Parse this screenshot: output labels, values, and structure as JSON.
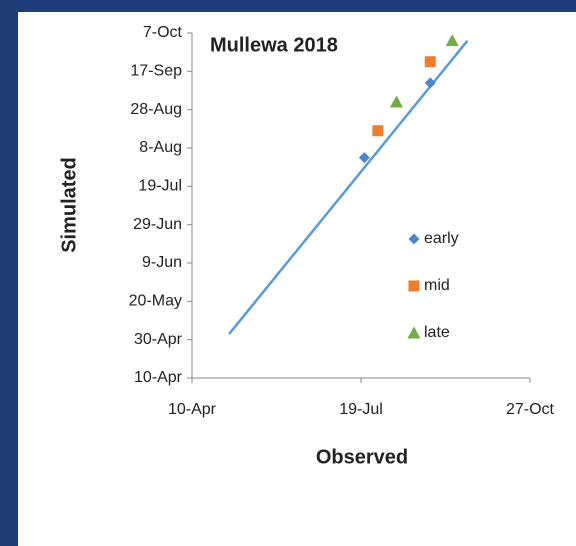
{
  "chart_data": {
    "type": "scatter",
    "title": "Mullewa 2018",
    "x_label": "Observed",
    "y_label": "Simulated",
    "xlim": [
      100,
      300
    ],
    "ylim": [
      100,
      280
    ],
    "xticks": [
      {
        "value": 100,
        "label": "10-Apr"
      },
      {
        "value": 200,
        "label": "19-Jul"
      },
      {
        "value": 300,
        "label": "27-Oct"
      }
    ],
    "yticks": [
      {
        "value": 100,
        "label": "10-Apr"
      },
      {
        "value": 120,
        "label": "30-Apr"
      },
      {
        "value": 140,
        "label": "20-May"
      },
      {
        "value": 160,
        "label": "9-Jun"
      },
      {
        "value": 180,
        "label": "29-Jun"
      },
      {
        "value": 200,
        "label": "19-Jul"
      },
      {
        "value": 220,
        "label": "8-Aug"
      },
      {
        "value": 240,
        "label": "28-Aug"
      },
      {
        "value": 260,
        "label": "17-Sep"
      },
      {
        "value": 280,
        "label": "7-Oct"
      }
    ],
    "series": [
      {
        "name": "early",
        "color": "#4a86c8",
        "marker": "diamond",
        "x": [
          202,
          241
        ],
        "values": [
          215,
          254
        ]
      },
      {
        "name": "mid",
        "color": "#ed7d31",
        "marker": "square",
        "x": [
          210,
          241
        ],
        "values": [
          229,
          265
        ]
      },
      {
        "name": "late",
        "color": "#70ad47",
        "marker": "triangle",
        "x": [
          221,
          254
        ],
        "values": [
          244,
          276
        ]
      }
    ],
    "trend": {
      "color": "#5b9bd5",
      "x": [
        122,
        263
      ],
      "values": [
        123,
        276
      ]
    },
    "legend": "right"
  }
}
